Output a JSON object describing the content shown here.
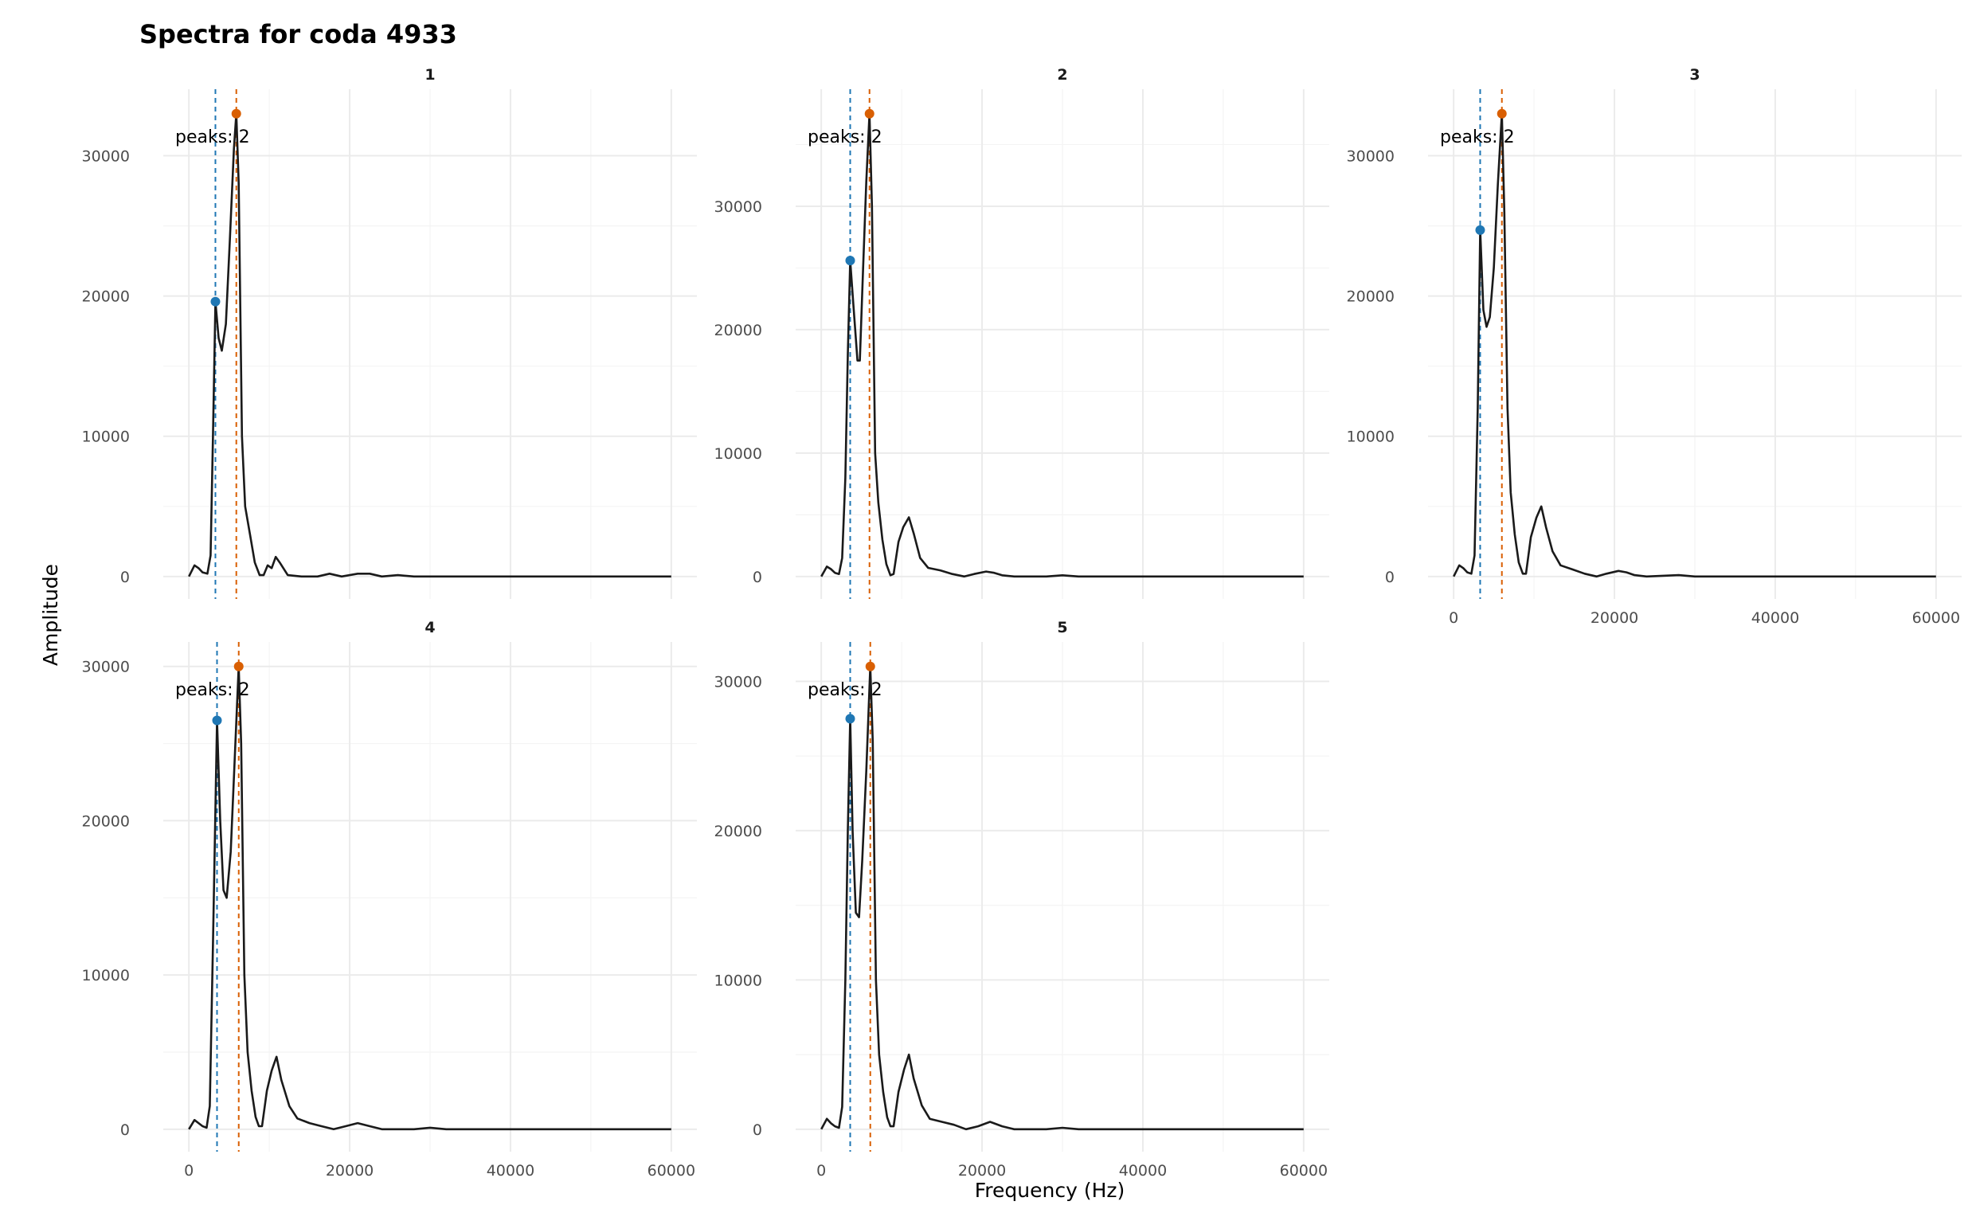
{
  "chart_data": {
    "type": "line",
    "title": "Spectra for coda 4933",
    "xlabel": "Frequency (Hz)",
    "ylabel": "Amplitude",
    "xlim": [
      0,
      60000
    ],
    "x_ticks": [
      0,
      20000,
      40000,
      60000
    ],
    "grid": true,
    "colors": {
      "line": "#1a1a1a",
      "peak1": "#1f77b4",
      "peak2": "#d95f02",
      "grid": "#ebebeb"
    },
    "panels": [
      {
        "label": "1",
        "annotation": "peaks: 2",
        "ylim": [
          0,
          33000
        ],
        "y_ticks": [
          0,
          10000,
          20000,
          30000
        ],
        "peak1": {
          "x": 3300,
          "y": 19600
        },
        "peak2": {
          "x": 5900,
          "y": 33000
        },
        "points": [
          [
            0,
            0
          ],
          [
            700,
            800
          ],
          [
            1200,
            600
          ],
          [
            1700,
            300
          ],
          [
            2300,
            200
          ],
          [
            2700,
            1500
          ],
          [
            3000,
            10000
          ],
          [
            3300,
            19600
          ],
          [
            3700,
            17000
          ],
          [
            4100,
            16100
          ],
          [
            4600,
            18000
          ],
          [
            5100,
            24000
          ],
          [
            5600,
            30500
          ],
          [
            5900,
            33000
          ],
          [
            6200,
            28000
          ],
          [
            6600,
            10000
          ],
          [
            7000,
            5000
          ],
          [
            7600,
            3000
          ],
          [
            8200,
            1000
          ],
          [
            8800,
            100
          ],
          [
            9300,
            100
          ],
          [
            9800,
            800
          ],
          [
            10300,
            600
          ],
          [
            10800,
            1400
          ],
          [
            11300,
            1000
          ],
          [
            12300,
            100
          ],
          [
            14000,
            0
          ],
          [
            16000,
            0
          ],
          [
            17500,
            200
          ],
          [
            19000,
            0
          ],
          [
            21000,
            200
          ],
          [
            22500,
            200
          ],
          [
            24000,
            0
          ],
          [
            26000,
            100
          ],
          [
            28000,
            0
          ],
          [
            40000,
            0
          ],
          [
            60000,
            0
          ]
        ]
      },
      {
        "label": "2",
        "annotation": "peaks: 2",
        "ylim": [
          0,
          37500
        ],
        "y_ticks": [
          0,
          10000,
          20000,
          30000
        ],
        "peak1": {
          "x": 3600,
          "y": 25600
        },
        "peak2": {
          "x": 6000,
          "y": 37500
        },
        "points": [
          [
            0,
            0
          ],
          [
            700,
            800
          ],
          [
            1200,
            600
          ],
          [
            1700,
            300
          ],
          [
            2200,
            200
          ],
          [
            2600,
            1500
          ],
          [
            3000,
            8000
          ],
          [
            3300,
            18000
          ],
          [
            3600,
            25600
          ],
          [
            4000,
            22000
          ],
          [
            4500,
            17500
          ],
          [
            4800,
            17500
          ],
          [
            5200,
            25000
          ],
          [
            5600,
            32000
          ],
          [
            6000,
            37500
          ],
          [
            6300,
            30000
          ],
          [
            6700,
            10000
          ],
          [
            7100,
            6000
          ],
          [
            7600,
            3000
          ],
          [
            8100,
            1000
          ],
          [
            8600,
            100
          ],
          [
            9000,
            200
          ],
          [
            9600,
            2800
          ],
          [
            10200,
            4000
          ],
          [
            10900,
            4800
          ],
          [
            11500,
            3500
          ],
          [
            12300,
            1500
          ],
          [
            13300,
            700
          ],
          [
            14800,
            500
          ],
          [
            16300,
            200
          ],
          [
            17800,
            0
          ],
          [
            19000,
            200
          ],
          [
            20500,
            400
          ],
          [
            21500,
            300
          ],
          [
            22500,
            100
          ],
          [
            24000,
            0
          ],
          [
            28000,
            0
          ],
          [
            30000,
            100
          ],
          [
            32000,
            0
          ],
          [
            40000,
            0
          ],
          [
            60000,
            0
          ]
        ]
      },
      {
        "label": "3",
        "annotation": "peaks: 2",
        "ylim": [
          0,
          33000
        ],
        "y_ticks": [
          0,
          10000,
          20000,
          30000
        ],
        "peak1": {
          "x": 3300,
          "y": 24700
        },
        "peak2": {
          "x": 6000,
          "y": 33000
        },
        "points": [
          [
            0,
            0
          ],
          [
            700,
            800
          ],
          [
            1200,
            600
          ],
          [
            1700,
            300
          ],
          [
            2200,
            200
          ],
          [
            2600,
            1500
          ],
          [
            3000,
            12000
          ],
          [
            3300,
            24700
          ],
          [
            3700,
            19000
          ],
          [
            4100,
            17800
          ],
          [
            4500,
            18500
          ],
          [
            5000,
            22000
          ],
          [
            5500,
            28000
          ],
          [
            6000,
            33000
          ],
          [
            6300,
            26000
          ],
          [
            6700,
            12000
          ],
          [
            7100,
            6000
          ],
          [
            7600,
            3000
          ],
          [
            8100,
            1000
          ],
          [
            8600,
            200
          ],
          [
            9000,
            200
          ],
          [
            9600,
            2800
          ],
          [
            10300,
            4200
          ],
          [
            10900,
            5000
          ],
          [
            11500,
            3500
          ],
          [
            12300,
            1800
          ],
          [
            13300,
            800
          ],
          [
            14800,
            500
          ],
          [
            16300,
            200
          ],
          [
            17800,
            0
          ],
          [
            19000,
            200
          ],
          [
            20500,
            400
          ],
          [
            21500,
            300
          ],
          [
            22500,
            100
          ],
          [
            24000,
            0
          ],
          [
            28000,
            100
          ],
          [
            30000,
            0
          ],
          [
            60000,
            0
          ]
        ]
      },
      {
        "label": "4",
        "annotation": "peaks: 2",
        "ylim": [
          0,
          30000
        ],
        "y_ticks": [
          0,
          10000,
          20000,
          30000
        ],
        "peak1": {
          "x": 3500,
          "y": 26500
        },
        "peak2": {
          "x": 6200,
          "y": 30000
        },
        "points": [
          [
            0,
            0
          ],
          [
            700,
            600
          ],
          [
            1200,
            400
          ],
          [
            1700,
            200
          ],
          [
            2200,
            100
          ],
          [
            2600,
            1500
          ],
          [
            3000,
            12000
          ],
          [
            3500,
            26500
          ],
          [
            3900,
            20000
          ],
          [
            4300,
            15500
          ],
          [
            4700,
            15000
          ],
          [
            5200,
            18000
          ],
          [
            5700,
            24000
          ],
          [
            6200,
            30000
          ],
          [
            6500,
            25000
          ],
          [
            6900,
            10000
          ],
          [
            7300,
            5000
          ],
          [
            7800,
            2500
          ],
          [
            8300,
            800
          ],
          [
            8700,
            200
          ],
          [
            9100,
            200
          ],
          [
            9700,
            2500
          ],
          [
            10300,
            3800
          ],
          [
            10900,
            4700
          ],
          [
            11500,
            3200
          ],
          [
            12500,
            1500
          ],
          [
            13500,
            700
          ],
          [
            15000,
            400
          ],
          [
            16500,
            200
          ],
          [
            18000,
            0
          ],
          [
            19500,
            200
          ],
          [
            21000,
            400
          ],
          [
            22500,
            200
          ],
          [
            24000,
            0
          ],
          [
            28000,
            0
          ],
          [
            30000,
            100
          ],
          [
            32000,
            0
          ],
          [
            60000,
            0
          ]
        ]
      },
      {
        "label": "5",
        "annotation": "peaks: 2",
        "ylim": [
          0,
          31000
        ],
        "y_ticks": [
          0,
          10000,
          20000,
          30000
        ],
        "peak1": {
          "x": 3600,
          "y": 27500
        },
        "peak2": {
          "x": 6100,
          "y": 31000
        },
        "points": [
          [
            0,
            0
          ],
          [
            700,
            700
          ],
          [
            1200,
            400
          ],
          [
            1700,
            200
          ],
          [
            2200,
            100
          ],
          [
            2600,
            1500
          ],
          [
            3000,
            10000
          ],
          [
            3300,
            20000
          ],
          [
            3600,
            27500
          ],
          [
            3900,
            20000
          ],
          [
            4300,
            14500
          ],
          [
            4700,
            14200
          ],
          [
            5100,
            18000
          ],
          [
            5600,
            24000
          ],
          [
            6100,
            31000
          ],
          [
            6400,
            26000
          ],
          [
            6800,
            10000
          ],
          [
            7200,
            5000
          ],
          [
            7700,
            2500
          ],
          [
            8200,
            800
          ],
          [
            8600,
            200
          ],
          [
            9000,
            200
          ],
          [
            9600,
            2500
          ],
          [
            10300,
            4000
          ],
          [
            10900,
            5000
          ],
          [
            11500,
            3400
          ],
          [
            12500,
            1600
          ],
          [
            13500,
            700
          ],
          [
            15000,
            500
          ],
          [
            16500,
            300
          ],
          [
            18000,
            0
          ],
          [
            19500,
            200
          ],
          [
            21000,
            500
          ],
          [
            22500,
            200
          ],
          [
            24000,
            0
          ],
          [
            28000,
            0
          ],
          [
            30000,
            100
          ],
          [
            32000,
            0
          ],
          [
            60000,
            0
          ]
        ]
      }
    ]
  }
}
